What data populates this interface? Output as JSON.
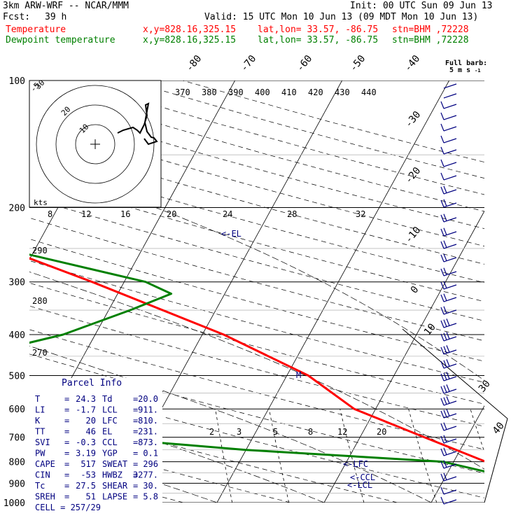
{
  "header": {
    "model": "3km ARW-WRF -- NCAR/MMM",
    "init": "Init: 00 UTC Sun 09 Jun 13",
    "fcst_label": "Fcst:",
    "fcst_value": "39 h",
    "valid": "Valid: 15 UTC Mon 10 Jun 13 (09 MDT Mon 10 Jun 13)",
    "temp_label": "Temperature",
    "dew_label": "Dewpoint temperature",
    "xy": "x,y=828.16,325.15",
    "latlon": "lat,lon= 33.57, -86.75",
    "stn": "stn=BHM ,72228",
    "barb_label1": "Full barb:",
    "barb_label2": "5 m s",
    "barb_exp": "-1",
    "colors": {
      "temperature": "#ff0000",
      "dewpoint": "#008000",
      "text_blue": "#000080",
      "grid": "#000000"
    }
  },
  "hodograph": {
    "units": "kts",
    "ring_labels": [
      "10",
      "20",
      "30"
    ],
    "speed_labels": [
      "8",
      "12",
      "16",
      "20",
      "24",
      "28",
      "32"
    ]
  },
  "parcel": {
    "title": "Parcel Info",
    "rows": [
      {
        "k1": "T",
        "v1": "24.3",
        "k2": "Td",
        "v2": "20.0"
      },
      {
        "k1": "LI",
        "v1": "-1.7",
        "k2": "LCL",
        "v2": "911."
      },
      {
        "k1": "K",
        "v1": "20",
        "k2": "LFC",
        "v2": "810."
      },
      {
        "k1": "TT",
        "v1": "46",
        "k2": "EL",
        "v2": "231."
      },
      {
        "k1": "SVI",
        "v1": "-0.3",
        "k2": "CCL",
        "v2": "873."
      },
      {
        "k1": "PW",
        "v1": "3.19",
        "k2": "YGP",
        "v2": "0.1"
      },
      {
        "k1": "CAPE",
        "v1": "517",
        "k2": "SWEAT",
        "v2": "296"
      },
      {
        "k1": "CIN",
        "v1": "-53",
        "k2": "HWBZ",
        "v2": "3277."
      },
      {
        "k1": "Tc",
        "v1": "27.5",
        "k2": "SHEAR",
        "v2": "30."
      },
      {
        "k1": "SREH",
        "v1": "51",
        "k2": "LAPSE",
        "v2": "5.8"
      }
    ],
    "cell": "CELL = 257/29"
  },
  "chart_data": {
    "type": "line",
    "y_axis": {
      "label": "",
      "ticks": [
        "100",
        "200",
        "300",
        "400",
        "500",
        "600",
        "700",
        "800",
        "900",
        "1000"
      ],
      "scale": "log"
    },
    "isotherm_labels": [
      "-80",
      "-70",
      "-60",
      "-50",
      "-40",
      "-30",
      "-20",
      "-10",
      "0",
      "10",
      "30",
      "40"
    ],
    "theta_labels": [
      "370",
      "380",
      "390",
      "400",
      "410",
      "420",
      "430",
      "440"
    ],
    "theta_left_labels": [
      "290",
      "280",
      "270"
    ],
    "mixing_ratio_labels": [
      "2",
      "3",
      "5",
      "8",
      "12",
      "20"
    ],
    "level_markers": [
      {
        "label": "<-EL",
        "p": 231
      },
      {
        "label": "<-LFC",
        "p": 810
      },
      {
        "label": "<-CCL",
        "p": 873
      },
      {
        "label": "<-LCL",
        "p": 911
      }
    ],
    "wet_bulb_zero_marker": "M",
    "series": [
      {
        "name": "Temperature",
        "color": "#ff0000",
        "points": [
          [
            1000,
            24.3
          ],
          [
            960,
            21
          ],
          [
            900,
            18
          ],
          [
            800,
            13
          ],
          [
            700,
            6
          ],
          [
            600,
            -2
          ],
          [
            500,
            -8
          ],
          [
            400,
            -18
          ],
          [
            300,
            -33
          ],
          [
            250,
            -43
          ],
          [
            200,
            -55
          ],
          [
            150,
            -64
          ],
          [
            120,
            -66
          ],
          [
            100,
            -70
          ]
        ]
      },
      {
        "name": "Dewpoint temperature",
        "color": "#008000",
        "points": [
          [
            1000,
            20
          ],
          [
            960,
            19
          ],
          [
            900,
            16
          ],
          [
            850,
            14
          ],
          [
            800,
            9
          ],
          [
            750,
            -10
          ],
          [
            700,
            -25
          ],
          [
            640,
            -25
          ],
          [
            560,
            -28
          ],
          [
            500,
            -35
          ],
          [
            470,
            -43
          ],
          [
            400,
            -33
          ],
          [
            350,
            -28
          ],
          [
            320,
            -25
          ],
          [
            300,
            -28
          ],
          [
            250,
            -43
          ],
          [
            200,
            -60
          ],
          [
            150,
            -72
          ],
          [
            120,
            -79
          ],
          [
            100,
            -87
          ]
        ]
      }
    ]
  }
}
